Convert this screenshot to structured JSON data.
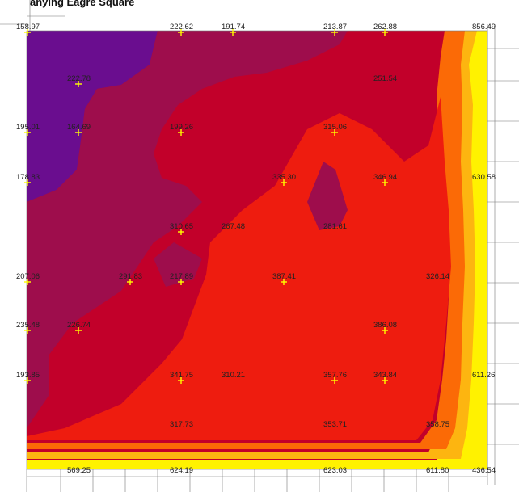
{
  "header_partial_text": "anying Eagre Square",
  "colors": {
    "purple": "#6a0d8f",
    "magenta": "#9e0d4c",
    "crimson": "#c2002a",
    "red": "#ee1c0f",
    "orange": "#fb6a06",
    "yellow": "#fff200",
    "marker": "#ffff00"
  },
  "measurement_points": [
    {
      "id": "p01",
      "value": "158.97"
    },
    {
      "id": "p02",
      "value": "222.62"
    },
    {
      "id": "p03",
      "value": "191.74"
    },
    {
      "id": "p04",
      "value": "213.87"
    },
    {
      "id": "p05",
      "value": "262.88"
    },
    {
      "id": "p06",
      "value": "856.49"
    },
    {
      "id": "p07",
      "value": "222.78"
    },
    {
      "id": "p08",
      "value": "251.54"
    },
    {
      "id": "p09",
      "value": "195.01"
    },
    {
      "id": "p10",
      "value": "164.69"
    },
    {
      "id": "p11",
      "value": "199.26"
    },
    {
      "id": "p12",
      "value": "315.06"
    },
    {
      "id": "p13",
      "value": "178.83"
    },
    {
      "id": "p14",
      "value": "335.30"
    },
    {
      "id": "p15",
      "value": "346.94"
    },
    {
      "id": "p16",
      "value": "630.58"
    },
    {
      "id": "p17",
      "value": "310.65"
    },
    {
      "id": "p18",
      "value": "267.48"
    },
    {
      "id": "p19",
      "value": "281.61"
    },
    {
      "id": "p20",
      "value": "207.06"
    },
    {
      "id": "p21",
      "value": "291.83"
    },
    {
      "id": "p22",
      "value": "217.89"
    },
    {
      "id": "p23",
      "value": "387.41"
    },
    {
      "id": "p24",
      "value": "326.14"
    },
    {
      "id": "p25",
      "value": "235.48"
    },
    {
      "id": "p26",
      "value": "226.74"
    },
    {
      "id": "p27",
      "value": "386.08"
    },
    {
      "id": "p28",
      "value": "193.85"
    },
    {
      "id": "p29",
      "value": "341.75"
    },
    {
      "id": "p30",
      "value": "310.21"
    },
    {
      "id": "p31",
      "value": "357.76"
    },
    {
      "id": "p32",
      "value": "343.84"
    },
    {
      "id": "p33",
      "value": "611.26"
    },
    {
      "id": "p34",
      "value": "317.73"
    },
    {
      "id": "p35",
      "value": "353.71"
    },
    {
      "id": "p36",
      "value": "358.75"
    },
    {
      "id": "p37",
      "value": "569.25"
    },
    {
      "id": "p38",
      "value": "624.19"
    },
    {
      "id": "p39",
      "value": "623.03"
    },
    {
      "id": "p40",
      "value": "611.80"
    },
    {
      "id": "p41",
      "value": "436.54"
    }
  ]
}
